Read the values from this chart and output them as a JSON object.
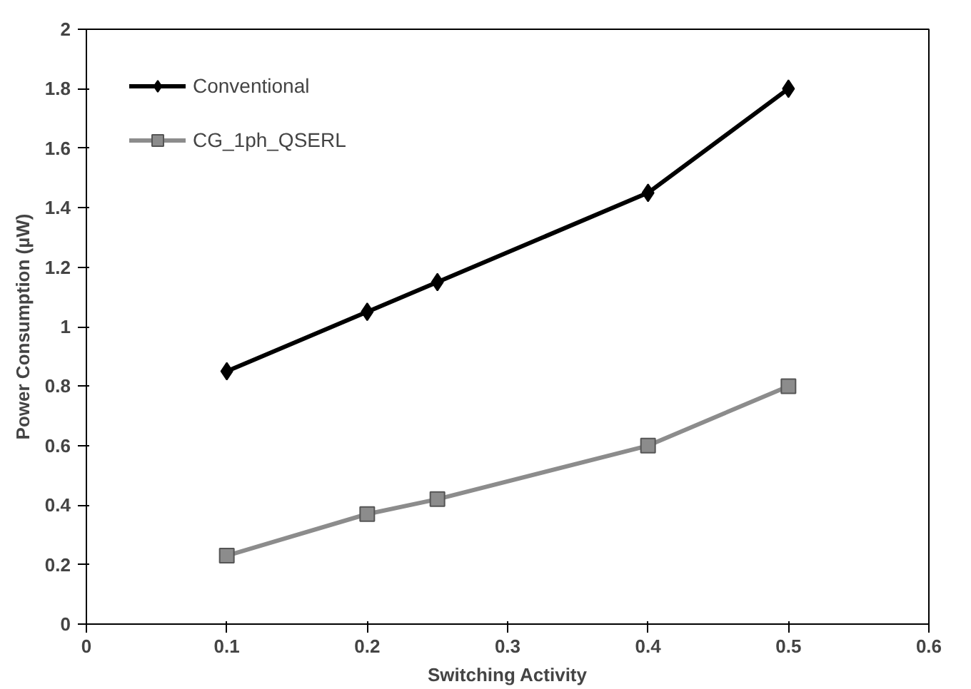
{
  "chart_data": {
    "type": "line",
    "xlabel": "Switching Activity",
    "ylabel": "Power Consumption (µW)",
    "x": [
      0.1,
      0.2,
      0.25,
      0.4,
      0.5
    ],
    "series": [
      {
        "name": "Conventional",
        "color": "#000000",
        "marker": "diamond",
        "values": [
          0.85,
          1.05,
          1.15,
          1.45,
          1.8
        ]
      },
      {
        "name": "CG_1ph_QSERL",
        "color": "#8c8c8c",
        "marker": "square",
        "values": [
          0.23,
          0.37,
          0.42,
          0.6,
          0.8
        ]
      }
    ],
    "xlim": [
      0,
      0.6
    ],
    "xticks": [
      0,
      0.1,
      0.2,
      0.3,
      0.4,
      0.5,
      0.6
    ],
    "ylim": [
      0,
      2
    ],
    "yticks": [
      0,
      0.2,
      0.4,
      0.6,
      0.8,
      1,
      1.2,
      1.4,
      1.6,
      1.8,
      2
    ],
    "grid": false,
    "legend": "top left",
    "line_style": "solid"
  }
}
